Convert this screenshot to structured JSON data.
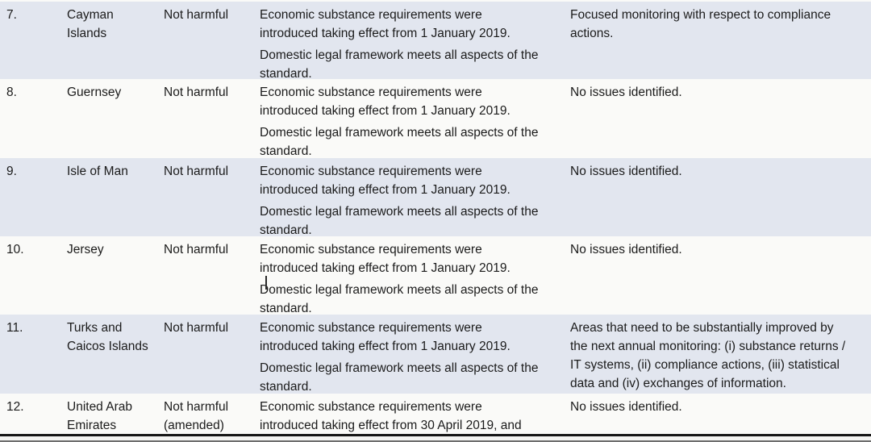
{
  "document": {
    "kind": "peer-review-results-table",
    "visible_row_range": "7-12"
  },
  "colors": {
    "shaded": "#e2e6ef",
    "plain": "#fafaf8",
    "text": "#1b1b1b",
    "rule": "#161616",
    "gap": "#f4f4f2",
    "edge": "#6e6e6e"
  },
  "table": {
    "columns": [
      "number",
      "jurisdiction",
      "status",
      "description",
      "monitoring"
    ],
    "rows": [
      {
        "number": "7.",
        "jurisdiction": "Cayman\nIslands",
        "status": "Not harmful",
        "description": [
          "Economic substance requirements were\nintroduced taking effect from 1 January 2019.",
          "Domestic legal framework meets all aspects of the\nstandard."
        ],
        "monitoring": "Focused monitoring with respect to compliance\nactions."
      },
      {
        "number": "8.",
        "jurisdiction": "Guernsey",
        "status": "Not harmful",
        "description": [
          "Economic substance requirements were\nintroduced taking effect from 1 January 2019.",
          "Domestic legal framework meets all aspects of the\nstandard."
        ],
        "monitoring": "No issues identified."
      },
      {
        "number": "9.",
        "jurisdiction": "Isle of Man",
        "status": "Not harmful",
        "description": [
          "Economic substance requirements were\nintroduced taking effect from 1 January 2019.",
          "Domestic legal framework meets all aspects of the\nstandard."
        ],
        "monitoring": "No issues identified."
      },
      {
        "number": "10.",
        "jurisdiction": "Jersey",
        "status": "Not harmful",
        "description": [
          "Economic substance requirements were\nintroduced taking effect from 1 January 2019.",
          "Domestic legal framework meets all aspects of the\nstandard."
        ],
        "monitoring": "No issues identified."
      },
      {
        "number": "11.",
        "jurisdiction": "Turks and\nCaicos Islands",
        "status": "Not harmful",
        "description": [
          "Economic substance requirements were\nintroduced taking effect from 1 January 2019.",
          "Domestic legal framework meets all aspects of the\nstandard."
        ],
        "monitoring": "Areas that need to be substantially improved by\nthe next annual monitoring: (i) substance returns /\nIT systems, (ii) compliance actions, (iii) statistical\ndata and (iv) exchanges of information."
      },
      {
        "number": "12.",
        "jurisdiction": "United Arab\nEmirates",
        "status": "Not harmful\n(amended)",
        "description": [
          "Economic substance requirements were\nintroduced taking effect from 30 April 2019, and"
        ],
        "monitoring": "No issues identified."
      }
    ]
  }
}
